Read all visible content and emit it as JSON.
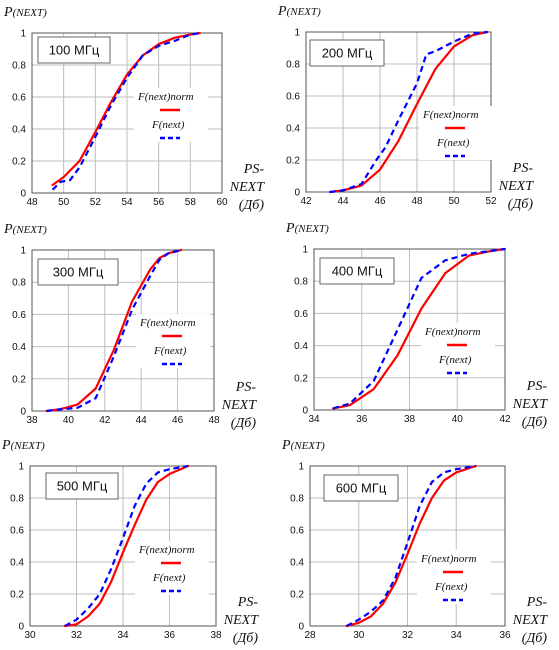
{
  "chart_data": [
    {
      "type": "line",
      "title": "100 МГц",
      "ylabel": "P(NEXT)",
      "xlabel": [
        "PS-",
        "NEXT",
        "(Дб)"
      ],
      "xlim": [
        48,
        60
      ],
      "ylim": [
        0,
        1
      ],
      "xticks": [
        48,
        50,
        52,
        54,
        56,
        58,
        60
      ],
      "yticks": [
        0,
        0.2,
        0.4,
        0.6,
        0.8,
        1
      ],
      "grid": true,
      "legend": "center-right",
      "series": [
        {
          "name": "F(next)norm",
          "color": "#ff0000",
          "style": "solid",
          "x": [
            49.3,
            50.0,
            51.0,
            52.0,
            53.0,
            54.0,
            55.0,
            56.0,
            57.0,
            58.0,
            58.6
          ],
          "y": [
            0.05,
            0.1,
            0.2,
            0.38,
            0.57,
            0.74,
            0.86,
            0.93,
            0.97,
            0.99,
            1.0
          ]
        },
        {
          "name": "F(next)",
          "color": "#0000ff",
          "style": "dashed",
          "x": [
            49.3,
            49.8,
            50.4,
            51.0,
            52.0,
            53.0,
            54.0,
            55.0,
            56.0,
            57.0,
            58.0,
            58.6
          ],
          "y": [
            0.02,
            0.07,
            0.08,
            0.16,
            0.35,
            0.55,
            0.72,
            0.86,
            0.92,
            0.95,
            0.99,
            1.0
          ]
        }
      ]
    },
    {
      "type": "line",
      "title": "200 МГц",
      "ylabel": "P(NEXT)",
      "xlabel": [
        "PS-",
        "NEXT",
        "(Дб)"
      ],
      "xlim": [
        42,
        52
      ],
      "ylim": [
        0,
        1
      ],
      "xticks": [
        42,
        44,
        46,
        48,
        50,
        52
      ],
      "yticks": [
        0,
        0.2,
        0.4,
        0.6,
        0.8,
        1
      ],
      "grid": true,
      "legend": "bottom-right",
      "series": [
        {
          "name": "F(next)norm",
          "color": "#ff0000",
          "style": "solid",
          "x": [
            43.3,
            44.0,
            45.0,
            46.0,
            47.0,
            48.0,
            49.0,
            50.0,
            51.0,
            51.8
          ],
          "y": [
            0.0,
            0.01,
            0.04,
            0.14,
            0.32,
            0.55,
            0.77,
            0.91,
            0.98,
            1.0
          ]
        },
        {
          "name": "F(next)",
          "color": "#0000ff",
          "style": "dashed",
          "x": [
            43.3,
            44.0,
            45.0,
            45.8,
            46.3,
            47.0,
            48.0,
            48.5,
            49.0,
            50.0,
            51.0,
            51.8
          ],
          "y": [
            0.0,
            0.01,
            0.05,
            0.2,
            0.28,
            0.45,
            0.68,
            0.86,
            0.88,
            0.94,
            0.99,
            1.0
          ]
        }
      ]
    },
    {
      "type": "line",
      "title": "300 МГц",
      "ylabel": "P(NEXT)",
      "xlabel": [
        "PS-",
        "NEXT",
        "(Дб)"
      ],
      "xlim": [
        38,
        48
      ],
      "ylim": [
        0,
        1
      ],
      "xticks": [
        38,
        40,
        42,
        44,
        46,
        48
      ],
      "yticks": [
        0,
        0.2,
        0.4,
        0.6,
        0.8,
        1
      ],
      "grid": true,
      "legend": "center-right",
      "series": [
        {
          "name": "F(next)norm",
          "color": "#ff0000",
          "style": "solid",
          "x": [
            38.8,
            39.5,
            40.5,
            41.5,
            42.5,
            43.5,
            44.5,
            45.0,
            45.5,
            46.2
          ],
          "y": [
            0.0,
            0.01,
            0.04,
            0.14,
            0.38,
            0.68,
            0.88,
            0.95,
            0.98,
            1.0
          ]
        },
        {
          "name": "F(next)",
          "color": "#0000ff",
          "style": "dashed",
          "x": [
            38.8,
            39.5,
            40.5,
            41.5,
            42.5,
            43.5,
            44.5,
            45.0,
            45.5,
            46.2
          ],
          "y": [
            0.0,
            0.01,
            0.02,
            0.08,
            0.34,
            0.63,
            0.84,
            0.94,
            0.98,
            1.0
          ]
        }
      ]
    },
    {
      "type": "line",
      "title": "400 МГц",
      "ylabel": "P(NEXT)",
      "xlabel": [
        "PS-",
        "NEXT",
        "(Дб)"
      ],
      "xlim": [
        34,
        42
      ],
      "ylim": [
        0,
        1
      ],
      "xticks": [
        34,
        36,
        38,
        40,
        42
      ],
      "yticks": [
        0,
        0.2,
        0.4,
        0.6,
        0.8,
        1
      ],
      "grid": true,
      "legend": "bottom-right",
      "series": [
        {
          "name": "F(next)norm",
          "color": "#ff0000",
          "style": "solid",
          "x": [
            34.8,
            35.5,
            36.5,
            37.5,
            38.5,
            39.5,
            40.5,
            41.5,
            42.0
          ],
          "y": [
            0.01,
            0.03,
            0.13,
            0.34,
            0.63,
            0.85,
            0.96,
            0.99,
            1.0
          ]
        },
        {
          "name": "F(next)",
          "color": "#0000ff",
          "style": "dashed",
          "x": [
            34.8,
            35.5,
            36.5,
            37.5,
            38.5,
            39.5,
            40.5,
            41.5,
            42.0
          ],
          "y": [
            0.01,
            0.04,
            0.18,
            0.5,
            0.82,
            0.93,
            0.97,
            0.99,
            1.0
          ]
        }
      ]
    },
    {
      "type": "line",
      "title": "500 МГц",
      "ylabel": "P(NEXT)",
      "xlabel": [
        "PS-",
        "NEXT",
        "(Дб)"
      ],
      "xlim": [
        30,
        38
      ],
      "ylim": [
        0,
        1
      ],
      "xticks": [
        30,
        32,
        34,
        36,
        38
      ],
      "yticks": [
        0,
        0.2,
        0.4,
        0.6,
        0.8,
        1
      ],
      "grid": true,
      "legend": "bottom-right",
      "series": [
        {
          "name": "F(next)norm",
          "color": "#ff0000",
          "style": "solid",
          "x": [
            31.5,
            32.0,
            32.5,
            33.0,
            33.5,
            34.0,
            34.5,
            35.0,
            35.5,
            36.0,
            36.8
          ],
          "y": [
            0.0,
            0.01,
            0.06,
            0.14,
            0.28,
            0.46,
            0.63,
            0.79,
            0.9,
            0.95,
            1.0
          ]
        },
        {
          "name": "F(next)",
          "color": "#0000ff",
          "style": "dashed",
          "x": [
            31.5,
            32.0,
            32.5,
            33.0,
            33.5,
            34.0,
            34.5,
            35.0,
            35.5,
            36.0,
            36.8
          ],
          "y": [
            0.0,
            0.04,
            0.11,
            0.2,
            0.36,
            0.55,
            0.75,
            0.89,
            0.96,
            0.98,
            1.0
          ]
        }
      ]
    },
    {
      "type": "line",
      "title": "600 МГц",
      "ylabel": "P(NEXT)",
      "xlabel": [
        "PS-",
        "NEXT",
        "(Дб)"
      ],
      "xlim": [
        28,
        36
      ],
      "ylim": [
        0,
        1
      ],
      "xticks": [
        28,
        30,
        32,
        34,
        36
      ],
      "yticks": [
        0,
        0.2,
        0.4,
        0.6,
        0.8,
        1
      ],
      "grid": true,
      "legend": "bottom-right",
      "series": [
        {
          "name": "F(next)norm",
          "color": "#ff0000",
          "style": "solid",
          "x": [
            29.5,
            30.0,
            30.5,
            31.0,
            31.5,
            32.0,
            32.5,
            33.0,
            33.5,
            34.0,
            34.8
          ],
          "y": [
            0.0,
            0.02,
            0.06,
            0.14,
            0.27,
            0.45,
            0.64,
            0.8,
            0.91,
            0.96,
            1.0
          ]
        },
        {
          "name": "F(next)",
          "color": "#0000ff",
          "style": "dashed",
          "x": [
            29.5,
            30.0,
            30.5,
            31.0,
            31.5,
            32.0,
            32.5,
            33.0,
            33.5,
            34.0,
            34.8
          ],
          "y": [
            0.0,
            0.04,
            0.09,
            0.16,
            0.3,
            0.52,
            0.75,
            0.9,
            0.96,
            0.98,
            1.0
          ]
        }
      ]
    }
  ]
}
